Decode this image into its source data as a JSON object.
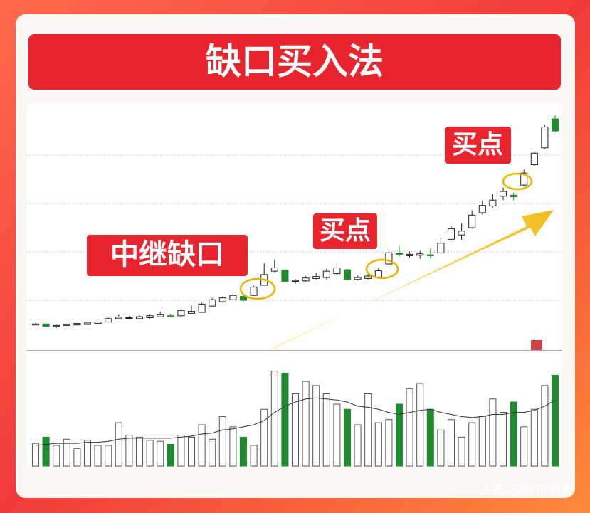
{
  "header": {
    "title": "缺口买入法"
  },
  "annotations": {
    "relay_gap": "中继缺口",
    "buy_point_1": "买点",
    "buy_point_2": "买点"
  },
  "watermark": "头条 @股市老鱼",
  "chart_data": {
    "type": "candlestick",
    "ylim": [
      0,
      100
    ],
    "yticks": [
      20,
      40,
      60,
      80
    ],
    "grid": true,
    "up_color": "#ffffff",
    "down_color": "#1e8c2e",
    "candles": [
      [
        9.8,
        10.2,
        10.6,
        9.6
      ],
      [
        10.2,
        9.2,
        10.4,
        9.0
      ],
      [
        9.2,
        9.6,
        9.9,
        8.6
      ],
      [
        9.6,
        10.0,
        10.3,
        9.4
      ],
      [
        9.8,
        10.4,
        10.6,
        9.6
      ],
      [
        10.0,
        10.6,
        10.8,
        9.8
      ],
      [
        10.4,
        11.0,
        11.2,
        10.2
      ],
      [
        11.0,
        12.4,
        12.8,
        10.8
      ],
      [
        12.4,
        13.0,
        14.0,
        12.2
      ],
      [
        12.6,
        12.8,
        13.4,
        12.2
      ],
      [
        12.4,
        13.2,
        13.8,
        12.2
      ],
      [
        12.8,
        13.6,
        14.0,
        12.4
      ],
      [
        13.2,
        14.0,
        15.2,
        13.0
      ],
      [
        13.6,
        13.4,
        14.2,
        13.0
      ],
      [
        13.6,
        15.8,
        16.4,
        13.4
      ],
      [
        14.6,
        15.4,
        17.8,
        14.4
      ],
      [
        15.0,
        18.4,
        19.0,
        14.8
      ],
      [
        17.6,
        20.2,
        21.0,
        17.4
      ],
      [
        19.4,
        21.0,
        21.6,
        19.0
      ],
      [
        20.2,
        22.0,
        23.0,
        20.0
      ],
      [
        21.6,
        20.0,
        22.2,
        19.6
      ],
      [
        22.0,
        25.4,
        26.0,
        21.8
      ],
      [
        26.2,
        30.6,
        35.2,
        26.0
      ],
      [
        32.0,
        33.4,
        36.8,
        31.6
      ],
      [
        32.4,
        27.8,
        33.0,
        27.4
      ],
      [
        27.8,
        28.2,
        28.8,
        26.8
      ],
      [
        28.0,
        29.2,
        30.0,
        27.6
      ],
      [
        29.0,
        29.8,
        31.2,
        28.6
      ],
      [
        29.4,
        32.0,
        33.0,
        28.6
      ],
      [
        31.0,
        33.4,
        35.8,
        30.6
      ],
      [
        32.6,
        28.6,
        33.0,
        28.2
      ],
      [
        28.6,
        29.4,
        30.2,
        28.2
      ],
      [
        29.0,
        30.0,
        30.8,
        28.6
      ],
      [
        29.6,
        32.2,
        33.2,
        29.2
      ],
      [
        35.0,
        39.6,
        41.4,
        34.6
      ],
      [
        39.4,
        39.0,
        42.4,
        38.0
      ],
      [
        38.4,
        39.0,
        40.2,
        37.6
      ],
      [
        38.6,
        39.2,
        40.4,
        37.2
      ],
      [
        38.8,
        38.4,
        41.4,
        37.4
      ],
      [
        39.6,
        43.6,
        45.8,
        39.2
      ],
      [
        45.2,
        49.6,
        50.8,
        44.6
      ],
      [
        47.0,
        48.6,
        51.8,
        45.0
      ],
      [
        50.0,
        55.2,
        57.2,
        49.6
      ],
      [
        56.2,
        59.2,
        61.2,
        55.4
      ],
      [
        59.0,
        61.4,
        64.0,
        58.4
      ],
      [
        63.0,
        65.0,
        66.6,
        61.4
      ],
      [
        63.4,
        62.8,
        64.4,
        61.4
      ],
      [
        67.6,
        72.6,
        74.0,
        67.2
      ],
      [
        76.0,
        80.8,
        81.6,
        75.4
      ],
      [
        83.0,
        91.6,
        92.4,
        82.6
      ],
      [
        95.0,
        90.0,
        96.4,
        89.6
      ]
    ],
    "volume_ylim": [
      0,
      100
    ],
    "volume": [
      22,
      28,
      20,
      26,
      17,
      25,
      20,
      20,
      42,
      30,
      28,
      25,
      24,
      21,
      30,
      28,
      40,
      26,
      48,
      38,
      28,
      20,
      55,
      92,
      90,
      70,
      82,
      78,
      70,
      60,
      55,
      40,
      70,
      42,
      45,
      60,
      75,
      80,
      55,
      35,
      45,
      28,
      42,
      48,
      65,
      52,
      62,
      38,
      55,
      78,
      88
    ],
    "volume_ma": [
      20,
      21,
      22,
      22,
      22,
      23,
      23,
      24,
      26,
      27,
      27,
      27,
      27,
      27,
      28,
      29,
      31,
      32,
      35,
      36,
      38,
      40,
      44,
      52,
      58,
      62,
      65,
      66,
      65,
      64,
      62,
      58,
      57,
      55,
      52,
      50,
      52,
      54,
      55,
      52,
      50,
      48,
      47,
      48,
      50,
      50,
      52,
      52,
      54,
      58,
      64
    ],
    "ma_color": "#333333"
  }
}
